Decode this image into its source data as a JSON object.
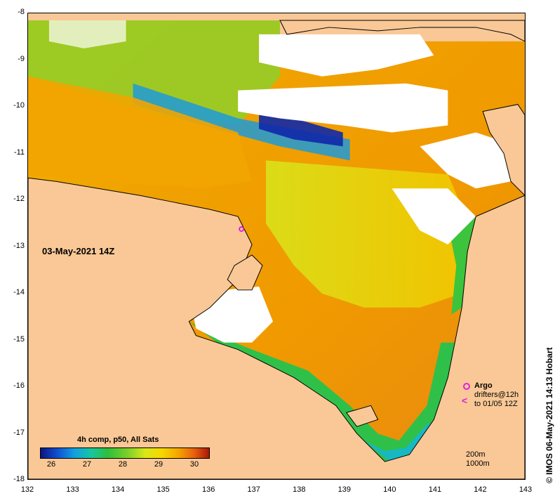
{
  "map": {
    "date_label": "03-May-2021 14Z",
    "lat_ticks": [
      "-8",
      "-9",
      "-10",
      "-11",
      "-12",
      "-13",
      "-14",
      "-15",
      "-16",
      "-17",
      "-18"
    ],
    "lon_ticks": [
      "132",
      "133",
      "134",
      "135",
      "136",
      "137",
      "138",
      "139",
      "140",
      "141",
      "142",
      "143"
    ]
  },
  "colorbar": {
    "title": "4h comp, p50, All Sats",
    "ticks": [
      "26",
      "27",
      "28",
      "29",
      "30"
    ]
  },
  "legend": {
    "argo": "Argo",
    "drifters": "drifters@12h",
    "drifters_window": "to 01/05 12Z",
    "contour_200": "200m",
    "contour_1000": "1000m",
    "marker_color": "#e020e0"
  },
  "credit": "© IMOS 06-May-2021 14:13 Hobart"
}
